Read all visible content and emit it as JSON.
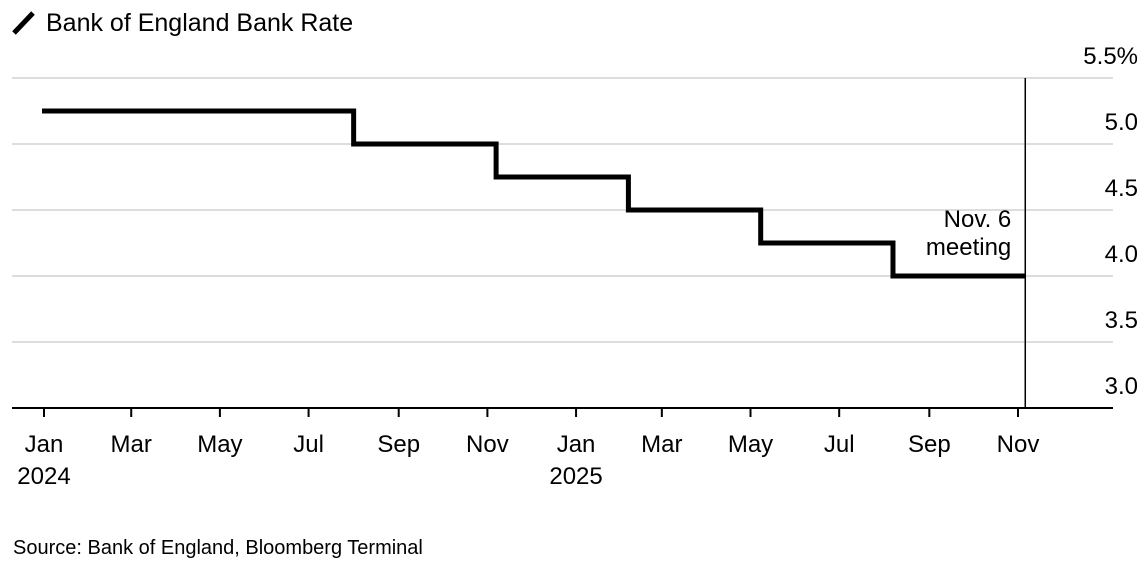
{
  "chart_data": {
    "type": "line",
    "title": "Bank of England Bank Rate",
    "source": "Source: Bank of England, Bloomberg Terminal",
    "series": [
      {
        "x": [
          "2024-01-01",
          "2024-08-01",
          "2024-11-07",
          "2025-02-06",
          "2025-05-08",
          "2025-08-07",
          "2025-11-06"
        ],
        "values": [
          5.25,
          5.0,
          4.75,
          4.5,
          4.25,
          4.0,
          4.0
        ]
      }
    ],
    "step": true,
    "ylim": [
      3.0,
      5.5
    ],
    "yticks": [
      {
        "value": 5.5,
        "label": "5.5%"
      },
      {
        "value": 5.0,
        "label": "5.0"
      },
      {
        "value": 4.5,
        "label": "4.5"
      },
      {
        "value": 4.0,
        "label": "4.0"
      },
      {
        "value": 3.5,
        "label": "3.5"
      },
      {
        "value": 3.0,
        "label": "3.0"
      }
    ],
    "xticks": [
      {
        "date": "2024-01-01",
        "label": "Jan",
        "year": "2024"
      },
      {
        "date": "2024-03-01",
        "label": "Mar"
      },
      {
        "date": "2024-05-01",
        "label": "May"
      },
      {
        "date": "2024-07-01",
        "label": "Jul"
      },
      {
        "date": "2024-09-01",
        "label": "Sep"
      },
      {
        "date": "2024-11-01",
        "label": "Nov"
      },
      {
        "date": "2025-01-01",
        "label": "Jan",
        "year": "2025"
      },
      {
        "date": "2025-03-01",
        "label": "Mar"
      },
      {
        "date": "2025-05-01",
        "label": "May"
      },
      {
        "date": "2025-07-01",
        "label": "Jul"
      },
      {
        "date": "2025-09-01",
        "label": "Sep"
      },
      {
        "date": "2025-11-01",
        "label": "Nov"
      }
    ],
    "annotation": {
      "date": "2025-11-06",
      "lines": [
        "Nov. 6",
        "meeting"
      ]
    },
    "y_axis_position": "right",
    "grid": true,
    "colors": {
      "line": "#000000",
      "grid": "#dddddd",
      "axis": "#000000"
    }
  }
}
